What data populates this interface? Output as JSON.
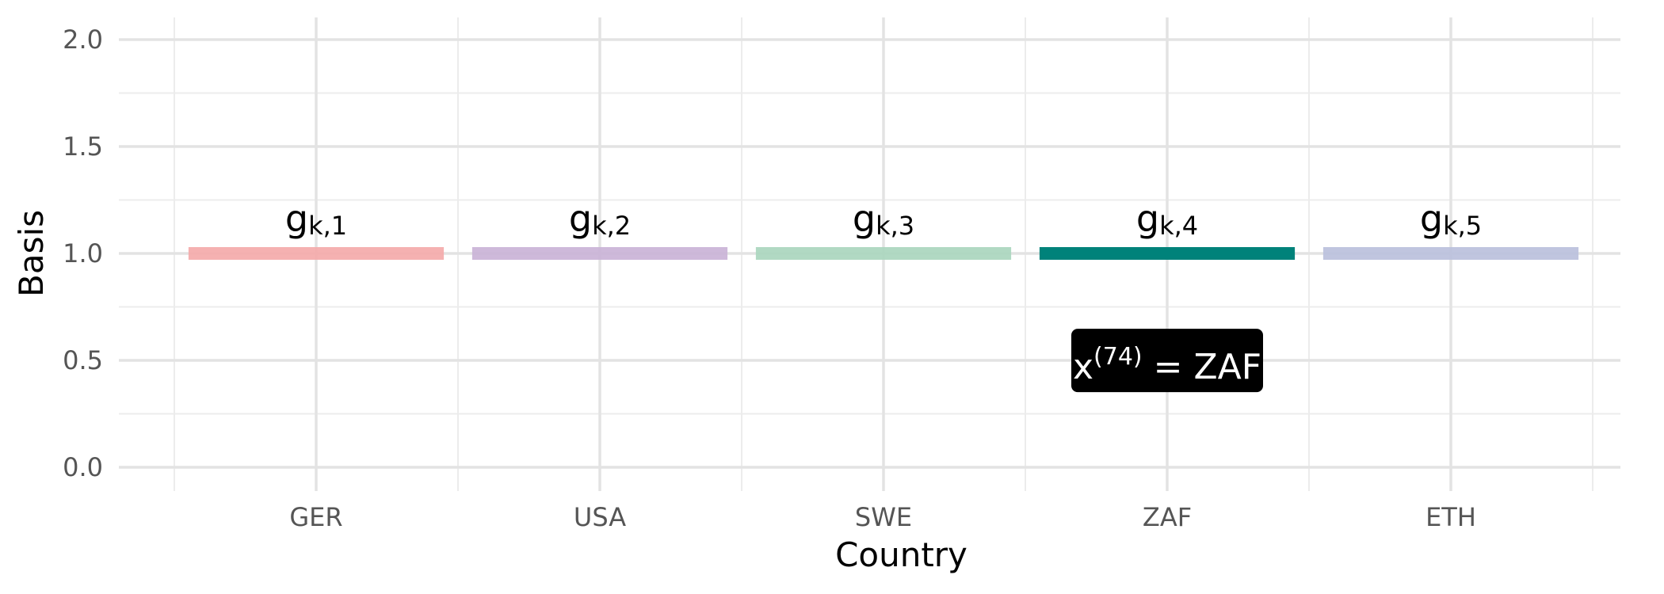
{
  "chart_data": {
    "type": "bar",
    "orientation": "segments",
    "categories": [
      "GER",
      "USA",
      "SWE",
      "ZAF",
      "ETH"
    ],
    "values": [
      1.0,
      1.0,
      1.0,
      1.0,
      1.0
    ],
    "segment_labels": [
      {
        "base": "g",
        "sub": "k,1"
      },
      {
        "base": "g",
        "sub": "k,2"
      },
      {
        "base": "g",
        "sub": "k,3"
      },
      {
        "base": "g",
        "sub": "k,4"
      },
      {
        "base": "g",
        "sub": "k,5"
      }
    ],
    "colors": [
      "#f4a9a8",
      "#c9b1d6",
      "#a9d5bd",
      "#00827a",
      "#b9bfdb"
    ],
    "highlight_index": 3,
    "xlabel": "Country",
    "ylabel": "Basis",
    "ylim": [
      0.0,
      2.0
    ],
    "yticks": [
      0.0,
      0.5,
      1.0,
      1.5,
      2.0
    ],
    "ytick_labels": [
      "0.0",
      "0.5",
      "1.0",
      "1.5",
      "2.0"
    ],
    "grid": true,
    "annotation": {
      "base": "x",
      "sup": "(74)",
      "rest": " = ZAF",
      "x_category": "ZAF",
      "y": 0.47
    }
  }
}
